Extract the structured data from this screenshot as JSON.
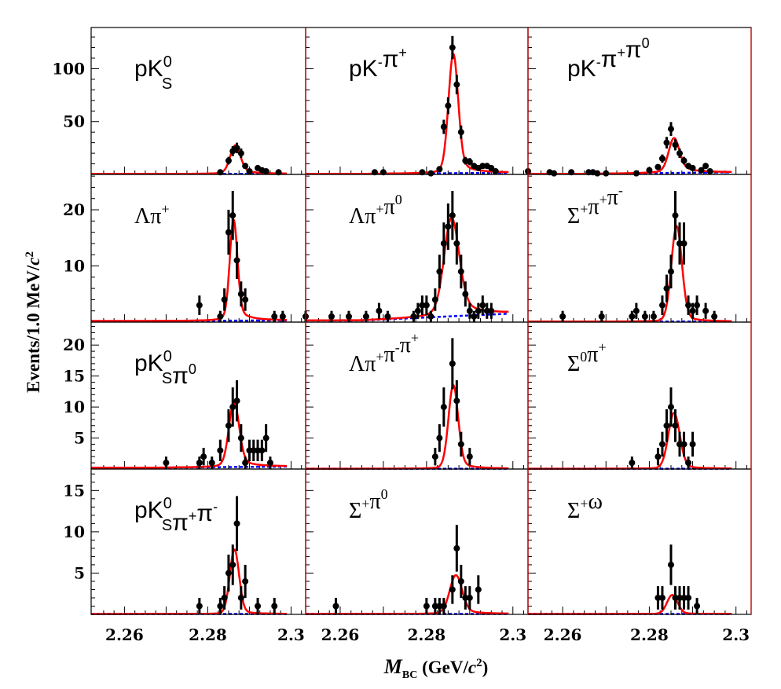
{
  "colors": {
    "fit": "#ff0000",
    "background": "#0000ff",
    "data": "#000000",
    "frame": "#000000",
    "divider": "#cc0000"
  },
  "axes": {
    "xlabel_main": "M",
    "xlabel_sub": "BC",
    "xlabel_rest": " (GeV/",
    "xlabel_c": "c",
    "xlabel_sup": "2",
    "xlabel_close": ")",
    "ylabel": "Events/1.0 MeV/",
    "ylabel_c": "c",
    "ylabel_sup": "2",
    "xlim": [
      2.252,
      2.3035
    ],
    "xticks": [
      2.26,
      2.28,
      2.3
    ],
    "xtick_labels": [
      "2.26",
      "2.28",
      "2.3"
    ]
  },
  "rows": [
    {
      "ylim": [
        0,
        139
      ],
      "yticks": [
        50,
        100
      ],
      "ytick_labels": [
        "50",
        "100"
      ]
    },
    {
      "ylim": [
        0,
        26.3
      ],
      "yticks": [
        10,
        20
      ],
      "ytick_labels": [
        "10",
        "20"
      ]
    },
    {
      "ylim": [
        0,
        23.7
      ],
      "yticks": [
        5,
        10,
        15,
        20
      ],
      "ytick_labels": [
        "5",
        "10",
        "15",
        "20"
      ]
    },
    {
      "ylim": [
        0,
        17.6
      ],
      "yticks": [
        5,
        10,
        15
      ],
      "ytick_labels": [
        "5",
        "10",
        "15"
      ]
    }
  ],
  "chart_data": [
    {
      "type": "scatter",
      "title": "pK0S",
      "label": [
        {
          "t": "pK"
        },
        {
          "sup": "0",
          "sub": "S"
        }
      ],
      "greek": false,
      "row": 0,
      "col": 0,
      "points": [
        [
          2.283,
          2
        ],
        [
          2.285,
          13
        ],
        [
          2.286,
          22
        ],
        [
          2.287,
          25
        ],
        [
          2.288,
          20
        ],
        [
          2.289,
          8
        ],
        [
          2.29,
          3
        ],
        [
          2.292,
          6
        ],
        [
          2.293,
          4
        ],
        [
          2.294,
          3
        ],
        [
          2.297,
          2
        ]
      ],
      "fit": {
        "peak": 27,
        "mean": 2.2866,
        "sigma": 0.0012,
        "tail": 0.15
      },
      "bkg": [
        0.5,
        0.5
      ]
    },
    {
      "type": "scatter",
      "title": "pK-π+",
      "label": [
        {
          "t": "pK"
        },
        {
          "sup": "-"
        },
        {
          "t": "π"
        },
        {
          "sup": "+"
        }
      ],
      "greek": false,
      "row": 0,
      "col": 1,
      "points": [
        [
          2.268,
          2
        ],
        [
          2.27,
          2
        ],
        [
          2.279,
          2
        ],
        [
          2.281,
          1
        ],
        [
          2.283,
          5
        ],
        [
          2.284,
          45
        ],
        [
          2.285,
          65
        ],
        [
          2.286,
          120
        ],
        [
          2.287,
          85
        ],
        [
          2.288,
          40
        ],
        [
          2.289,
          13
        ],
        [
          2.29,
          12
        ],
        [
          2.291,
          8
        ],
        [
          2.292,
          6
        ],
        [
          2.293,
          8
        ],
        [
          2.294,
          8
        ],
        [
          2.295,
          6
        ],
        [
          2.296,
          3
        ]
      ],
      "fit": {
        "peak": 113,
        "mean": 2.2862,
        "sigma": 0.0011,
        "tail": 0.1
      },
      "bkg": [
        0.5,
        1.5
      ]
    },
    {
      "type": "scatter",
      "title": "pK-π+π0",
      "label": [
        {
          "t": "pK"
        },
        {
          "sup": "-"
        },
        {
          "t": "π"
        },
        {
          "sup": "+"
        },
        {
          "t": "π"
        },
        {
          "sup": "0"
        }
      ],
      "greek": false,
      "row": 0,
      "col": 2,
      "points": [
        [
          2.252,
          3
        ],
        [
          2.257,
          2
        ],
        [
          2.258,
          1
        ],
        [
          2.262,
          2
        ],
        [
          2.266,
          2
        ],
        [
          2.267,
          2
        ],
        [
          2.268,
          1
        ],
        [
          2.27,
          1
        ],
        [
          2.277,
          1
        ],
        [
          2.28,
          4
        ],
        [
          2.282,
          7
        ],
        [
          2.283,
          15
        ],
        [
          2.284,
          30
        ],
        [
          2.285,
          43
        ],
        [
          2.286,
          28
        ],
        [
          2.287,
          20
        ],
        [
          2.288,
          13
        ],
        [
          2.289,
          8
        ],
        [
          2.29,
          6
        ],
        [
          2.292,
          4
        ],
        [
          2.293,
          8
        ],
        [
          2.294,
          3
        ]
      ],
      "fit": {
        "peak": 33,
        "mean": 2.2857,
        "sigma": 0.0012,
        "tail": 0.2
      },
      "bkg": [
        0.5,
        2
      ]
    },
    {
      "type": "scatter",
      "title": "Λπ+",
      "label": [
        {
          "t": "Λπ"
        },
        {
          "sup": "+"
        }
      ],
      "greek": true,
      "row": 1,
      "col": 0,
      "points": [
        [
          2.278,
          3
        ],
        [
          2.283,
          1
        ],
        [
          2.284,
          4
        ],
        [
          2.285,
          16
        ],
        [
          2.286,
          19
        ],
        [
          2.287,
          11
        ],
        [
          2.288,
          5
        ],
        [
          2.289,
          4
        ],
        [
          2.296,
          1
        ],
        [
          2.298,
          1
        ]
      ],
      "fit": {
        "peak": 18,
        "mean": 2.2862,
        "sigma": 0.0009,
        "tail": 0.12
      },
      "bkg": [
        0.2,
        0.3
      ]
    },
    {
      "type": "scatter",
      "title": "Λπ+π0",
      "label": [
        {
          "t": "Λπ"
        },
        {
          "sup": "+"
        },
        {
          "t": "π"
        },
        {
          "sup": "0"
        }
      ],
      "greek": true,
      "row": 1,
      "col": 1,
      "points": [
        [
          2.252,
          1
        ],
        [
          2.258,
          1
        ],
        [
          2.262,
          1
        ],
        [
          2.266,
          1
        ],
        [
          2.269,
          2
        ],
        [
          2.271,
          1
        ],
        [
          2.277,
          1
        ],
        [
          2.278,
          2
        ],
        [
          2.279,
          3
        ],
        [
          2.28,
          3
        ],
        [
          2.281,
          1
        ],
        [
          2.282,
          4
        ],
        [
          2.283,
          9
        ],
        [
          2.284,
          14
        ],
        [
          2.285,
          17
        ],
        [
          2.286,
          19
        ],
        [
          2.287,
          14
        ],
        [
          2.288,
          9
        ],
        [
          2.289,
          5
        ],
        [
          2.29,
          2
        ],
        [
          2.291,
          1
        ],
        [
          2.292,
          2
        ],
        [
          2.293,
          3
        ],
        [
          2.294,
          2
        ],
        [
          2.295,
          2
        ]
      ],
      "fit": {
        "peak": 17.5,
        "mean": 2.2858,
        "sigma": 0.0017,
        "tail": 0.15
      },
      "bkg": [
        0.3,
        1.5
      ]
    },
    {
      "type": "scatter",
      "title": "Σ+π+π-",
      "label": [
        {
          "t": "Σ"
        },
        {
          "sup": "+"
        },
        {
          "t": "π"
        },
        {
          "sup": "+"
        },
        {
          "t": "π"
        },
        {
          "sup": "-"
        }
      ],
      "greek": true,
      "row": 1,
      "col": 2,
      "points": [
        [
          2.26,
          1
        ],
        [
          2.269,
          1
        ],
        [
          2.276,
          1
        ],
        [
          2.277,
          2
        ],
        [
          2.279,
          1
        ],
        [
          2.281,
          1
        ],
        [
          2.283,
          3
        ],
        [
          2.284,
          6
        ],
        [
          2.285,
          9
        ],
        [
          2.286,
          19
        ],
        [
          2.287,
          14
        ],
        [
          2.288,
          14
        ],
        [
          2.289,
          3
        ],
        [
          2.29,
          2
        ],
        [
          2.291,
          3
        ],
        [
          2.293,
          2
        ],
        [
          2.295,
          1
        ]
      ],
      "fit": {
        "peak": 17,
        "mean": 2.2863,
        "sigma": 0.0012,
        "tail": 0.06
      },
      "bkg": [
        0.1,
        0.1
      ]
    },
    {
      "type": "scatter",
      "title": "pK0Sπ0",
      "label": [
        {
          "t": "pK"
        },
        {
          "sup": "0",
          "sub": "S"
        },
        {
          "t": "π"
        },
        {
          "sup": "0"
        }
      ],
      "greek": false,
      "row": 2,
      "col": 0,
      "points": [
        [
          2.27,
          1
        ],
        [
          2.278,
          1
        ],
        [
          2.279,
          2
        ],
        [
          2.281,
          1
        ],
        [
          2.283,
          3
        ],
        [
          2.285,
          7
        ],
        [
          2.286,
          10
        ],
        [
          2.287,
          11
        ],
        [
          2.288,
          5
        ],
        [
          2.289,
          1
        ],
        [
          2.29,
          3
        ],
        [
          2.291,
          3
        ],
        [
          2.292,
          3
        ],
        [
          2.293,
          3
        ],
        [
          2.294,
          5
        ],
        [
          2.295,
          1
        ]
      ],
      "fit": {
        "peak": 10.5,
        "mean": 2.2863,
        "sigma": 0.0012,
        "tail": 0.12
      },
      "bkg": [
        0.2,
        0.4
      ]
    },
    {
      "type": "scatter",
      "title": "Λπ+π-π+",
      "label": [
        {
          "t": "Λπ"
        },
        {
          "sup": "+"
        },
        {
          "t": "π"
        },
        {
          "sup": "-"
        },
        {
          "t": "π"
        },
        {
          "sup": "+"
        }
      ],
      "greek": true,
      "row": 2,
      "col": 1,
      "points": [
        [
          2.282,
          2
        ],
        [
          2.283,
          5
        ],
        [
          2.284,
          10
        ],
        [
          2.286,
          17
        ],
        [
          2.287,
          11
        ],
        [
          2.288,
          4
        ],
        [
          2.29,
          2
        ]
      ],
      "fit": {
        "peak": 13.5,
        "mean": 2.2862,
        "sigma": 0.0011,
        "tail": 0.08
      },
      "bkg": [
        0.05,
        0.05
      ]
    },
    {
      "type": "scatter",
      "title": "Σ0π+",
      "label": [
        {
          "t": "Σ"
        },
        {
          "sup": "0"
        },
        {
          "t": "π"
        },
        {
          "sup": "+"
        }
      ],
      "greek": true,
      "row": 2,
      "col": 2,
      "points": [
        [
          2.276,
          1
        ],
        [
          2.282,
          2
        ],
        [
          2.283,
          4
        ],
        [
          2.284,
          7
        ],
        [
          2.285,
          10
        ],
        [
          2.286,
          7
        ],
        [
          2.287,
          4
        ],
        [
          2.288,
          4
        ],
        [
          2.289,
          1
        ],
        [
          2.29,
          4
        ]
      ],
      "fit": {
        "peak": 9,
        "mean": 2.2857,
        "sigma": 0.0013,
        "tail": 0.06
      },
      "bkg": [
        0.05,
        0.05
      ]
    },
    {
      "type": "scatter",
      "title": "pK0Sπ+π-",
      "label": [
        {
          "t": "pK"
        },
        {
          "sup": "0",
          "sub": "S"
        },
        {
          "t": "π"
        },
        {
          "sup": "+"
        },
        {
          "t": "π"
        },
        {
          "sup": "-"
        }
      ],
      "greek": false,
      "row": 3,
      "col": 0,
      "points": [
        [
          2.278,
          1
        ],
        [
          2.283,
          1
        ],
        [
          2.284,
          2
        ],
        [
          2.285,
          5
        ],
        [
          2.286,
          6
        ],
        [
          2.287,
          11
        ],
        [
          2.288,
          2
        ],
        [
          2.289,
          4
        ],
        [
          2.292,
          1
        ],
        [
          2.296,
          1
        ]
      ],
      "fit": {
        "peak": 7.8,
        "mean": 2.2864,
        "sigma": 0.0011,
        "tail": 0.05
      },
      "bkg": [
        0.05,
        0.05
      ]
    },
    {
      "type": "scatter",
      "title": "Σ+π0",
      "label": [
        {
          "t": "Σ"
        },
        {
          "sup": "+"
        },
        {
          "t": "π"
        },
        {
          "sup": "0"
        }
      ],
      "greek": true,
      "row": 3,
      "col": 1,
      "points": [
        [
          2.259,
          1
        ],
        [
          2.28,
          1
        ],
        [
          2.282,
          1
        ],
        [
          2.283,
          1
        ],
        [
          2.284,
          1
        ],
        [
          2.286,
          3
        ],
        [
          2.287,
          8
        ],
        [
          2.288,
          4
        ],
        [
          2.289,
          2
        ],
        [
          2.29,
          2
        ],
        [
          2.292,
          3
        ]
      ],
      "fit": {
        "peak": 4.7,
        "mean": 2.2868,
        "sigma": 0.0014,
        "tail": 0.1
      },
      "bkg": [
        0.05,
        0.05
      ]
    },
    {
      "type": "scatter",
      "title": "Σ+ω",
      "label": [
        {
          "t": "Σ"
        },
        {
          "sup": "+"
        },
        {
          "t": "ω"
        }
      ],
      "greek": true,
      "row": 3,
      "col": 2,
      "points": [
        [
          2.282,
          2
        ],
        [
          2.283,
          2
        ],
        [
          2.285,
          6
        ],
        [
          2.286,
          2
        ],
        [
          2.287,
          2
        ],
        [
          2.288,
          2
        ],
        [
          2.289,
          2
        ],
        [
          2.291,
          1
        ]
      ],
      "fit": {
        "peak": 2.3,
        "mean": 2.2853,
        "sigma": 0.0012,
        "tail": 0.05
      },
      "bkg": [
        0.05,
        0.05
      ]
    }
  ]
}
